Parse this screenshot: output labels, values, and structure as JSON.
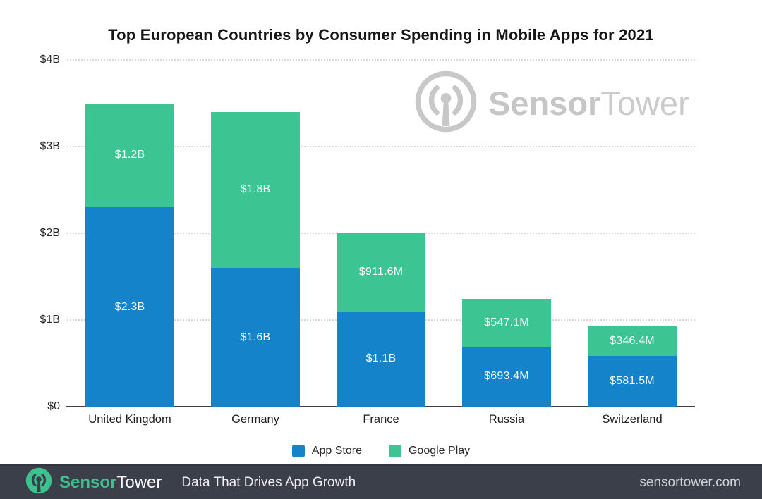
{
  "title": "Top European Countries by Consumer Spending in Mobile Apps for 2021",
  "watermark": {
    "brand_bold": "Sensor",
    "brand_light": "Tower"
  },
  "chart_data": {
    "type": "bar",
    "stacked": true,
    "title": "Top European Countries by Consumer Spending in Mobile Apps for 2021",
    "categories": [
      "United Kingdom",
      "Germany",
      "France",
      "Russia",
      "Switzerland"
    ],
    "series": [
      {
        "name": "App Store",
        "color": "#1583ca",
        "values_billions": [
          2.3,
          1.6,
          1.1,
          0.6934,
          0.5815
        ],
        "labels": [
          "$2.3B",
          "$1.6B",
          "$1.1B",
          "$693.4M",
          "$581.5M"
        ]
      },
      {
        "name": "Google Play",
        "color": "#3cc492",
        "values_billions": [
          1.2,
          1.8,
          0.9116,
          0.5471,
          0.3464
        ],
        "labels": [
          "$1.2B",
          "$1.8B",
          "$911.6M",
          "$547.1M",
          "$346.4M"
        ]
      }
    ],
    "ylim": [
      0,
      4
    ],
    "yticks": [
      {
        "value": 0,
        "label": "$0"
      },
      {
        "value": 1,
        "label": "$1B"
      },
      {
        "value": 2,
        "label": "$2B"
      },
      {
        "value": 3,
        "label": "$3B"
      },
      {
        "value": 4,
        "label": "$4B"
      }
    ],
    "grid": "horizontal-dotted",
    "legend_position": "bottom"
  },
  "legend": [
    {
      "label": "App Store",
      "color": "#1583ca"
    },
    {
      "label": "Google Play",
      "color": "#3cc492"
    }
  ],
  "footer": {
    "brand_bold": "Sensor",
    "brand_light": "Tower",
    "tagline": "Data That Drives App Growth",
    "website": "sensortower.com"
  },
  "colors": {
    "app_store_blue": "#1583ca",
    "google_play_green": "#3cc492",
    "footer_background": "#3a3f4a",
    "watermark_gray": "#c8c8c8"
  }
}
